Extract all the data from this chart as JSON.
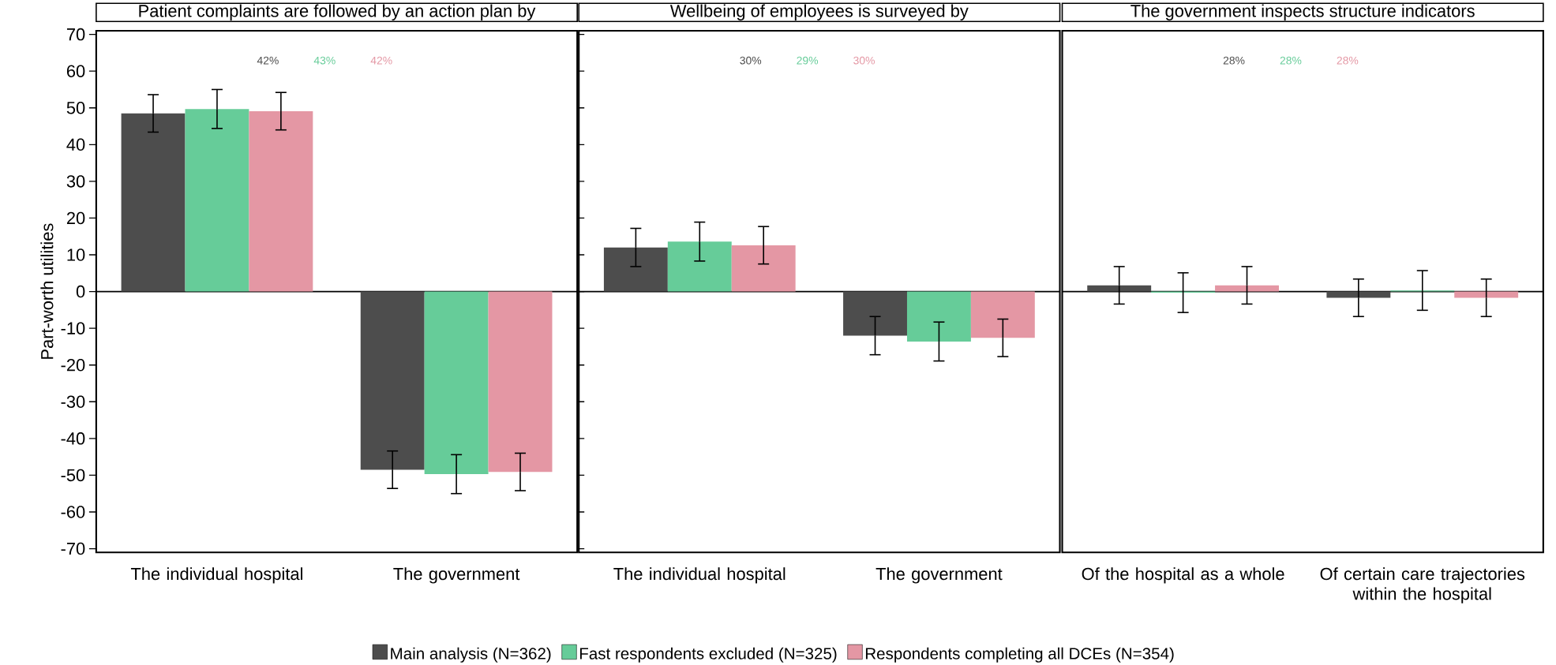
{
  "chart_data": [
    {
      "type": "bar",
      "title": "Patient complaints are followed by an action plan by",
      "ylabel": "Part-worth utilities",
      "categories": [
        "The individual hospital",
        "The government"
      ],
      "ylim": [
        -71,
        71
      ],
      "yticks": [
        -70,
        -60,
        -50,
        -40,
        -30,
        -20,
        -10,
        0,
        10,
        20,
        30,
        40,
        50,
        60,
        70
      ],
      "series": [
        {
          "color": "#4d4d4d",
          "values": [
            48.5,
            -48.5
          ],
          "errors": [
            5.1,
            5.1
          ]
        },
        {
          "color": "#66cc99",
          "values": [
            49.7,
            -49.7
          ],
          "errors": [
            5.3,
            5.3
          ]
        },
        {
          "color": "#e497a4",
          "values": [
            49.1,
            -49.1
          ],
          "errors": [
            5.1,
            5.1
          ]
        }
      ],
      "annotations": [
        "42%",
        "43%",
        "42%"
      ]
    },
    {
      "type": "bar",
      "title": "Wellbeing of employees is surveyed by",
      "categories": [
        "The individual hospital",
        "The government"
      ],
      "ylim": [
        -71,
        71
      ],
      "yticks": [
        -70,
        -60,
        -50,
        -40,
        -30,
        -20,
        -10,
        0,
        10,
        20,
        30,
        40,
        50,
        60,
        70
      ],
      "tick_labels": "x",
      "legend": "bottom",
      "series": [
        {
          "name": "Main analysis (N=362)",
          "color": "#4d4d4d",
          "values": [
            12.0,
            -12.0
          ],
          "errors": [
            5.2,
            5.2
          ]
        },
        {
          "name": "Fast respondents excluded (N=325)",
          "color": "#66cc99",
          "values": [
            13.6,
            -13.6
          ],
          "errors": [
            5.3,
            5.3
          ]
        },
        {
          "name": "Respondents completing all DCEs (N=354)",
          "color": "#e497a4",
          "values": [
            12.6,
            -12.6
          ],
          "errors": [
            5.1,
            5.1
          ]
        }
      ],
      "annotations": [
        "30%",
        "29%",
        "30%"
      ]
    },
    {
      "type": "bar",
      "title": "The government inspects structure indicators",
      "categories": [
        "Of the hospital as a whole",
        "Of certain care trajectories within the hospital"
      ],
      "ylim": [
        -71,
        71
      ],
      "yticks": [
        -70,
        -60,
        -50,
        -40,
        -30,
        -20,
        -10,
        0,
        10,
        20,
        30,
        40,
        50,
        60,
        70
      ],
      "tick_labels": "x",
      "series": [
        {
          "color": "#4d4d4d",
          "values": [
            1.7,
            -1.7
          ],
          "errors": [
            5.1,
            5.1
          ]
        },
        {
          "color": "#66cc99",
          "values": [
            -0.3,
            0.3
          ],
          "errors": [
            5.4,
            5.4
          ]
        },
        {
          "color": "#e497a4",
          "values": [
            1.7,
            -1.7
          ],
          "errors": [
            5.1,
            5.1
          ]
        }
      ],
      "annotations": [
        "28%",
        "28%",
        "28%"
      ]
    }
  ]
}
